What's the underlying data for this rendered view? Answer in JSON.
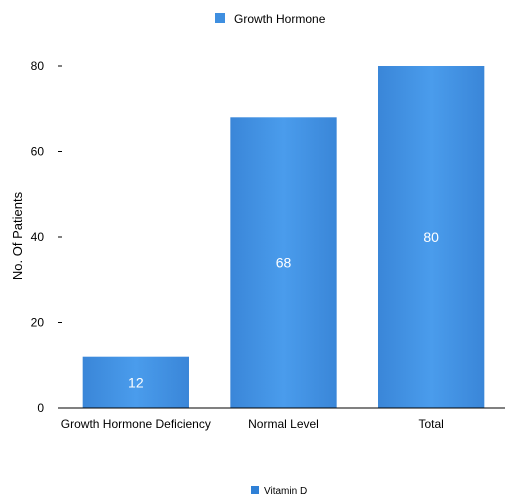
{
  "chart_data": {
    "type": "bar",
    "categories": [
      "Growth Hormone Deficiency",
      "Normal Level",
      "Total"
    ],
    "series": [
      {
        "name": "Growth Hormone",
        "values": [
          12,
          68,
          80
        ]
      }
    ],
    "data_labels": [
      "12",
      "68",
      "80"
    ],
    "title": "",
    "xlabel": "",
    "ylabel": "No. Of Patients",
    "ylim": [
      0,
      80
    ],
    "yticks": [
      0,
      20,
      40,
      60,
      80
    ],
    "grid": false,
    "legend_position": "top",
    "bar_color": "#3f8fe0"
  },
  "footer_legend": {
    "label": "Vitamin D",
    "color": "#2f80d6"
  }
}
